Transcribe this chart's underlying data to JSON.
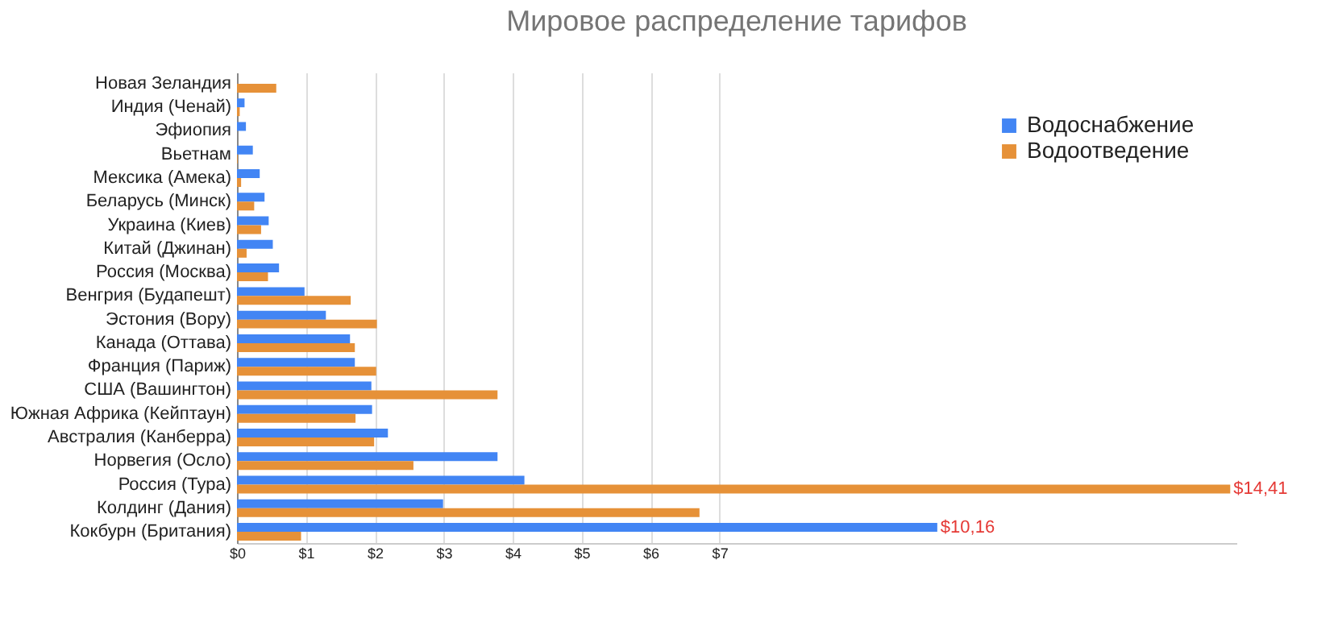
{
  "chart_data": {
    "type": "bar",
    "orientation": "horizontal",
    "title": "Мировое распределение тарифов",
    "categories": [
      "Новая Зеландия",
      "Индия (Ченай)",
      "Эфиопия",
      "Вьетнам",
      "Мексика (Амека)",
      "Беларусь (Минск)",
      "Украина (Киев)",
      "Китай (Джинан)",
      "Россия (Москва)",
      "Венгрия (Будапешт)",
      "Эстония (Вору)",
      "Канада (Оттава)",
      "Франция (Париж)",
      "США (Вашингтон)",
      "Южная Африка (Кейптаун)",
      "Австралия (Канберра)",
      "Норвегия (Осло)",
      "Россия (Тура)",
      "Колдинг (Дания)",
      "Кокбурн (Британия)"
    ],
    "series": [
      {
        "name": "Водоснабжение",
        "color": "#4285f4",
        "values": [
          null,
          0.11,
          0.13,
          0.23,
          0.33,
          0.4,
          0.46,
          0.52,
          0.61,
          0.98,
          1.29,
          1.64,
          1.71,
          1.95,
          1.96,
          2.19,
          3.78,
          4.17,
          2.99,
          10.16
        ],
        "value_labels": [
          null,
          null,
          null,
          null,
          null,
          null,
          null,
          null,
          null,
          null,
          null,
          null,
          null,
          null,
          null,
          null,
          null,
          null,
          null,
          "$10,16"
        ]
      },
      {
        "name": "Водоотведение",
        "color": "#e69138",
        "values": [
          0.57,
          0.04,
          null,
          0.01,
          0.06,
          0.25,
          0.35,
          0.14,
          0.45,
          1.65,
          2.03,
          1.71,
          2.02,
          3.78,
          1.72,
          1.99,
          2.56,
          14.41,
          6.71,
          0.93
        ],
        "value_labels": [
          null,
          null,
          null,
          null,
          null,
          null,
          null,
          null,
          null,
          null,
          null,
          null,
          null,
          null,
          null,
          null,
          null,
          "$14,41",
          null,
          null
        ]
      }
    ],
    "xlim": [
      0,
      14.5
    ],
    "xticks": [
      {
        "value": 0,
        "label": "$0"
      },
      {
        "value": 1,
        "label": "$1"
      },
      {
        "value": 2,
        "label": "$2"
      },
      {
        "value": 3,
        "label": "$3"
      },
      {
        "value": 4,
        "label": "$4"
      },
      {
        "value": 5,
        "label": "$5"
      },
      {
        "value": 6,
        "label": "$6"
      },
      {
        "value": 7,
        "label": "$7"
      }
    ],
    "grid": true,
    "legend": "top right"
  }
}
